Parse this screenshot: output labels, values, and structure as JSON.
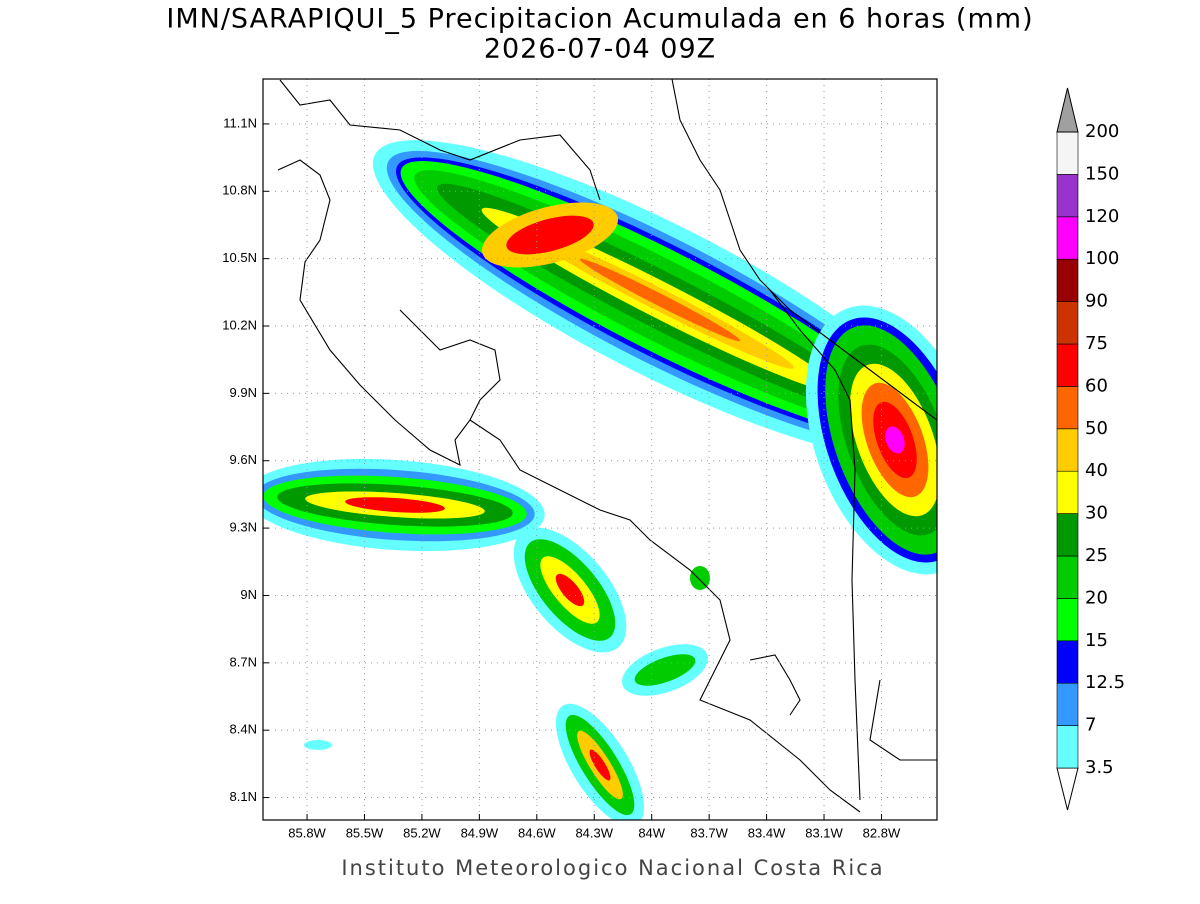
{
  "title": "IMN/SARAPIQUI_5 Precipitacion Acumulada en 6 horas (mm)",
  "subtitle": "2026-07-04 09Z",
  "map": {
    "lonlim": [
      -86.03,
      -82.51
    ],
    "latlim": [
      8.0,
      11.3
    ],
    "grid": true,
    "lat_ticks": [
      {
        "value": 11.1,
        "label": "11.1N"
      },
      {
        "value": 10.8,
        "label": "10.8N"
      },
      {
        "value": 10.5,
        "label": "10.5N"
      },
      {
        "value": 10.2,
        "label": "10.2N"
      },
      {
        "value": 9.9,
        "label": "9.9N"
      },
      {
        "value": 9.6,
        "label": "9.6N"
      },
      {
        "value": 9.3,
        "label": "9.3N"
      },
      {
        "value": 9,
        "label": "9N"
      },
      {
        "value": 8.7,
        "label": "8.7N"
      },
      {
        "value": 8.4,
        "label": "8.4N"
      },
      {
        "value": 8.1,
        "label": "8.1N"
      }
    ],
    "lon_ticks": [
      {
        "value": -85.8,
        "label": "85.8W"
      },
      {
        "value": -85.5,
        "label": "85.5W"
      },
      {
        "value": -85.2,
        "label": "85.2W"
      },
      {
        "value": -84.9,
        "label": "84.9W"
      },
      {
        "value": -84.6,
        "label": "84.6W"
      },
      {
        "value": -84.3,
        "label": "84.3W"
      },
      {
        "value": -84,
        "label": "84W"
      },
      {
        "value": -83.7,
        "label": "83.7W"
      },
      {
        "value": -83.4,
        "label": "83.4W"
      },
      {
        "value": -83.1,
        "label": "83.1W"
      },
      {
        "value": -82.8,
        "label": "82.8W"
      }
    ]
  },
  "colorbar": {
    "levels": [
      3.5,
      7,
      12.5,
      15,
      20,
      25,
      30,
      40,
      50,
      60,
      75,
      90,
      100,
      120,
      150,
      200
    ],
    "colors": [
      "#ffffff",
      "#66ffff",
      "#3399ff",
      "#0000ff",
      "#00ff00",
      "#00cc00",
      "#009900",
      "#ffff00",
      "#ffcc00",
      "#ff6600",
      "#ff0000",
      "#cc3300",
      "#990000",
      "#ff00ff",
      "#9933cc",
      "#f5f5f5",
      "#a0a0a0"
    ]
  },
  "footer": "Instituto Meteorologico Nacional Costa Rica"
}
